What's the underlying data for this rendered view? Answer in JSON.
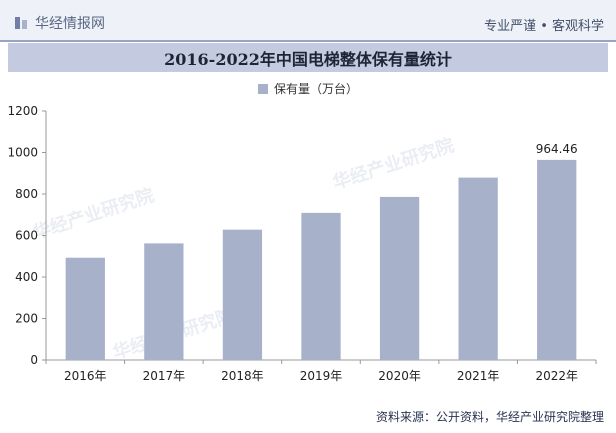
{
  "header": {
    "brand": "华经情报网",
    "tagline": "专业严谨 • 客观科学"
  },
  "watermark": "华经产业研究院",
  "footer": {
    "source": "资料来源：公开资料，华经产业研究院整理"
  },
  "colors": {
    "bar": "#a7b1ca",
    "title_bg": "#c4cbe0",
    "header_bg": "#eef1f7"
  },
  "chart_data": {
    "type": "bar",
    "title": "2016-2022年中国电梯整体保有量统计",
    "categories": [
      "2016年",
      "2017年",
      "2018年",
      "2019年",
      "2020年",
      "2021年",
      "2022年"
    ],
    "series": [
      {
        "name": "保有量（万台）",
        "values": [
          493,
          562,
          628,
          709,
          786,
          879,
          964.46
        ]
      }
    ],
    "data_labels": {
      "2022年": "964.46"
    },
    "ylim": [
      0,
      1200
    ],
    "yticks": [
      0,
      200,
      400,
      600,
      800,
      1000,
      1200
    ],
    "grid": false,
    "legend": "top-center"
  }
}
